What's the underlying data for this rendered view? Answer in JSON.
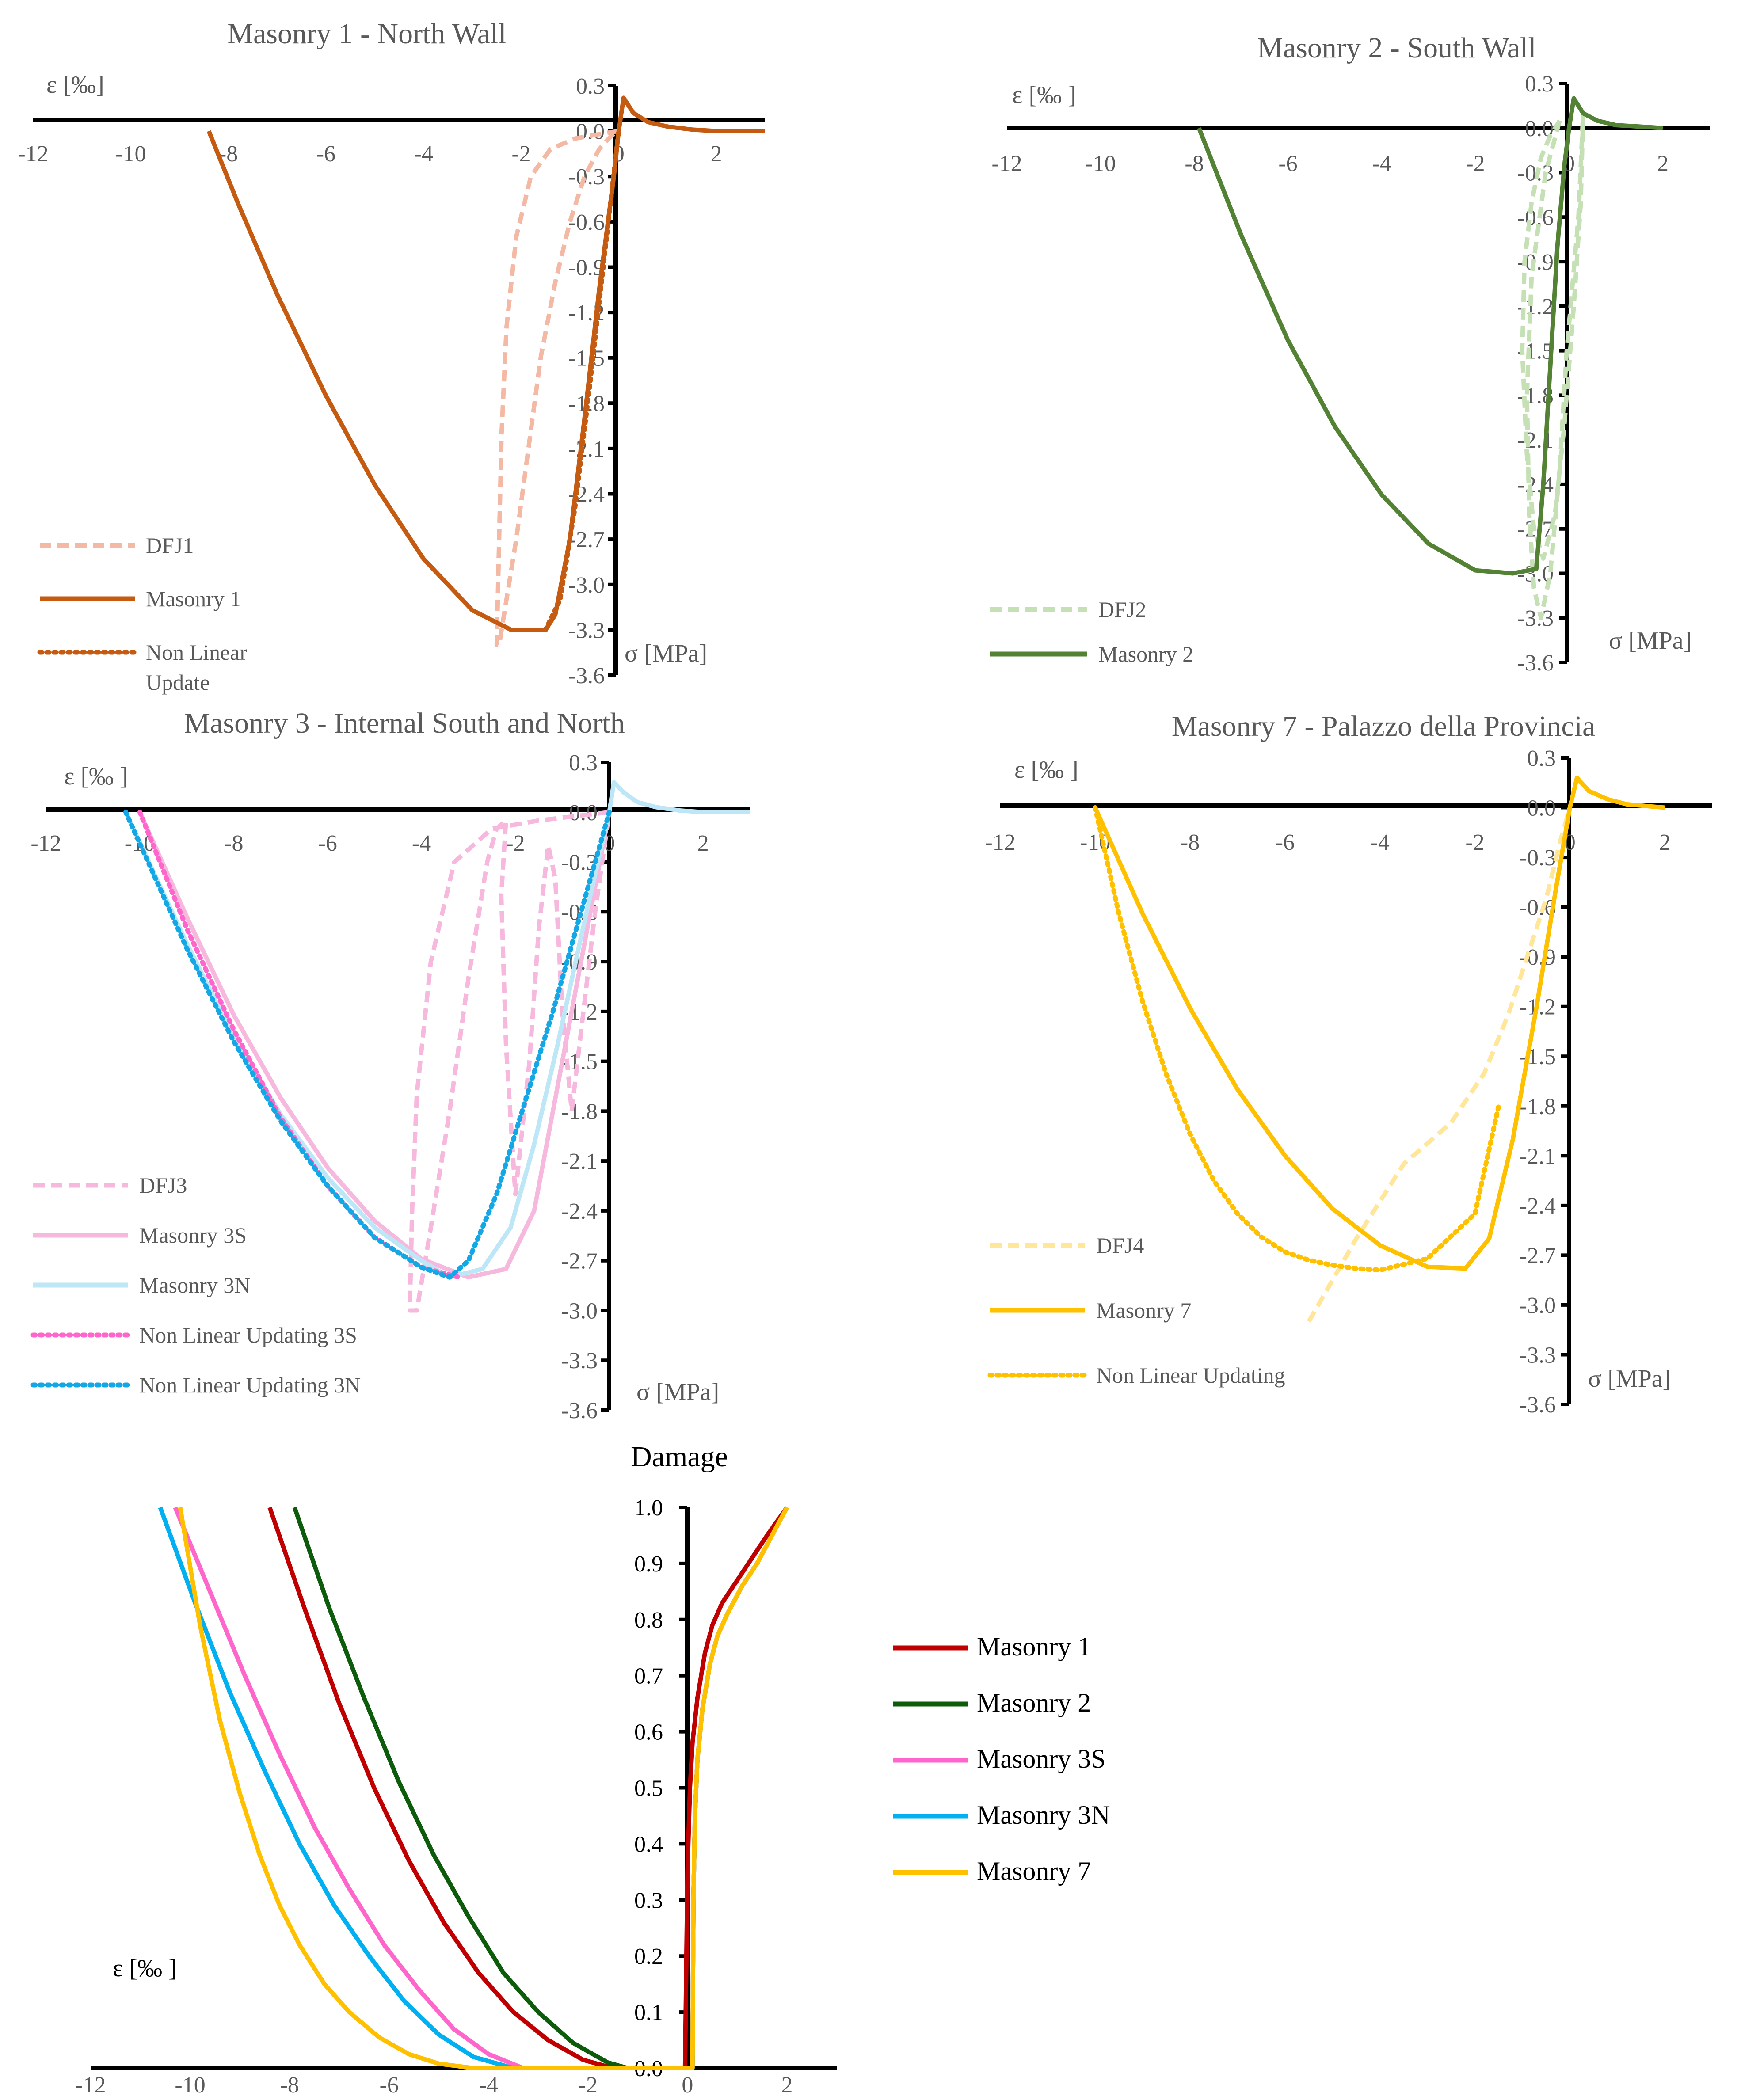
{
  "chart_data": [
    {
      "type": "line",
      "title": "Masonry 1 - North Wall",
      "xlabel": "ε [‰]",
      "ylabel": "σ [MPa]",
      "xlim": [
        -12,
        3
      ],
      "ylim": [
        -3.6,
        0.3
      ],
      "xticks": [
        "-12",
        "-10",
        "-8",
        "-6",
        "-4",
        "-2",
        "0",
        "2"
      ],
      "yticks": [
        "0.3",
        "0.0",
        "-0.3",
        "-0.6",
        "-0.9",
        "-1.2",
        "-1.5",
        "-1.8",
        "-2.1",
        "-2.4",
        "-2.7",
        "-3.0",
        "-3.3",
        "-3.6"
      ],
      "legend": "bottom-left",
      "series": [
        {
          "name": "DFJ1",
          "color": "#f4b9a4",
          "dash": "dashed",
          "x": [
            0,
            -0.4,
            -0.9,
            -1.4,
            -1.8,
            -2.1,
            -2.3,
            -2.4,
            -2.45,
            -2.5,
            -2.45,
            -2.3,
            -2.1,
            -1.85,
            -1.6,
            -1.3,
            -1.0,
            -0.7,
            -0.4,
            -0.15,
            0
          ],
          "y": [
            0,
            -0.02,
            -0.05,
            -0.12,
            -0.3,
            -0.7,
            -1.3,
            -2.0,
            -2.7,
            -3.4,
            -3.4,
            -3.1,
            -2.7,
            -2.1,
            -1.5,
            -1.0,
            -0.6,
            -0.3,
            -0.12,
            -0.03,
            0
          ]
        },
        {
          "name": "Masonry 1",
          "color": "#c55a11",
          "dash": "solid",
          "x": [
            -8.4,
            -7.8,
            -7.0,
            -6.0,
            -5.0,
            -4.0,
            -3.0,
            -2.2,
            -1.5,
            -1.3,
            -1.0,
            -0.7,
            -0.4,
            -0.1,
            0,
            0.1,
            0.3,
            0.6,
            1.0,
            1.5,
            2.0,
            3.0
          ],
          "y": [
            0,
            -0.48,
            -1.08,
            -1.75,
            -2.34,
            -2.83,
            -3.17,
            -3.3,
            -3.3,
            -3.2,
            -2.7,
            -1.9,
            -1.05,
            -0.3,
            0,
            0.22,
            0.12,
            0.06,
            0.03,
            0.01,
            0,
            0
          ]
        },
        {
          "name": "Non Linear Update",
          "color": "#c55a11",
          "dash": "dotted",
          "x": [
            -1.5,
            -1.2,
            -0.9,
            -0.6,
            -0.3,
            0
          ],
          "y": [
            -3.3,
            -3.1,
            -2.5,
            -1.7,
            -0.85,
            0
          ]
        }
      ]
    },
    {
      "type": "line",
      "title": "Masonry 2 - South Wall",
      "xlabel": "ε [‰ ]",
      "ylabel": "σ [MPa]",
      "xlim": [
        -12,
        3
      ],
      "ylim": [
        -3.6,
        0.3
      ],
      "xticks": [
        "-12",
        "-10",
        "-8",
        "-6",
        "-4",
        "-2",
        "0",
        "2"
      ],
      "yticks": [
        "0.3",
        "0.0",
        "-0.3",
        "-0.6",
        "-0.9",
        "-1.2",
        "-1.5",
        "-1.8",
        "-2.1",
        "-2.4",
        "-2.7",
        "-3.0",
        "-3.3",
        "-3.6"
      ],
      "legend": "bottom-left",
      "series": [
        {
          "name": "DFJ2",
          "color": "#c5e0b4",
          "dash": "dashed",
          "x": [
            -0.2,
            -0.5,
            -0.8,
            -0.9,
            -0.85,
            -0.75,
            -0.6,
            -0.4,
            -0.2,
            -0.05,
            0.2,
            0.3,
            0.25,
            0.1,
            -0.1,
            -0.3,
            -0.55,
            -0.75,
            -0.9,
            -1.0,
            -0.95,
            -0.8,
            -0.6,
            -0.4,
            -0.2
          ],
          "y": [
            0.05,
            -0.3,
            -1.0,
            -1.8,
            -2.6,
            -3.1,
            -3.3,
            -3.0,
            -2.3,
            -1.5,
            -0.6,
            0.1,
            -0.5,
            -1.2,
            -2.0,
            -2.6,
            -2.9,
            -2.7,
            -2.2,
            -1.5,
            -0.9,
            -0.5,
            -0.2,
            -0.05,
            0.05
          ]
        },
        {
          "name": "Masonry 2",
          "color": "#548235",
          "dash": "solid",
          "x": [
            -7.9,
            -7.0,
            -6.0,
            -5.0,
            -4.0,
            -3.0,
            -2.0,
            -1.2,
            -0.7,
            -0.55,
            -0.4,
            -0.25,
            -0.1,
            0,
            0.1,
            0.3,
            0.6,
            1.0,
            1.5,
            2.0
          ],
          "y": [
            0,
            -0.72,
            -1.43,
            -2.01,
            -2.47,
            -2.8,
            -2.98,
            -3.0,
            -2.97,
            -2.4,
            -1.6,
            -0.8,
            -0.25,
            0,
            0.2,
            0.1,
            0.05,
            0.02,
            0.01,
            0
          ]
        }
      ]
    },
    {
      "type": "line",
      "title": "Masonry 3 - Internal South and North",
      "xlabel": "ε [‰ ]",
      "ylabel": "σ [MPa]",
      "xlim": [
        -12,
        3
      ],
      "ylim": [
        -3.6,
        0.3
      ],
      "xticks": [
        "-12",
        "-10",
        "-8",
        "-6",
        "-4",
        "-2",
        "0",
        "2"
      ],
      "yticks": [
        "0.3",
        "0.0",
        "-0.3",
        "-0.6",
        "-0.9",
        "-1.2",
        "-1.5",
        "-1.8",
        "-2.1",
        "-2.4",
        "-2.7",
        "-3.0",
        "-3.3",
        "-3.6"
      ],
      "legend": "bottom-left",
      "series": [
        {
          "name": "DFJ3",
          "color": "#f7b8de",
          "dash": "dashed",
          "x": [
            0,
            -0.6,
            -1.5,
            -2.5,
            -3.3,
            -3.8,
            -4.1,
            -4.2,
            -4.25,
            -4.1,
            -3.8,
            -3.4,
            -3.0,
            -2.6,
            -2.4,
            -2.2,
            -2.3,
            -2.2,
            -2.0,
            -1.7,
            -1.5,
            -1.3,
            -1.15,
            -1.0,
            -0.8,
            -0.55,
            -0.3,
            -0.1,
            0
          ],
          "y": [
            0,
            -0.02,
            -0.05,
            -0.1,
            -0.3,
            -0.9,
            -1.7,
            -2.4,
            -3.0,
            -3.0,
            -2.5,
            -1.8,
            -1.0,
            -0.3,
            -0.1,
            -0.05,
            -0.5,
            -1.4,
            -2.3,
            -1.5,
            -0.7,
            -0.2,
            -0.4,
            -1.2,
            -1.8,
            -1.2,
            -0.6,
            -0.2,
            0
          ]
        },
        {
          "name": "Masonry 3S",
          "color": "#f7b8de",
          "dash": "solid",
          "x": [
            -10.0,
            -9.0,
            -8.0,
            -7.0,
            -6.0,
            -5.0,
            -4.0,
            -3.0,
            -2.2,
            -1.6,
            -1.2,
            -0.8,
            -0.4,
            -0.1,
            0
          ],
          "y": [
            0,
            -0.63,
            -1.22,
            -1.72,
            -2.14,
            -2.46,
            -2.69,
            -2.8,
            -2.75,
            -2.4,
            -1.8,
            -1.2,
            -0.6,
            -0.15,
            0
          ]
        },
        {
          "name": "Masonry 3N",
          "color": "#bde6f6",
          "dash": "solid",
          "x": [
            -10.3,
            -9.0,
            -8.0,
            -7.0,
            -6.0,
            -5.0,
            -4.0,
            -3.4,
            -2.7,
            -2.1,
            -1.6,
            -1.1,
            -0.6,
            -0.2,
            0,
            0.1,
            0.3,
            0.6,
            1.0,
            1.5,
            2.0,
            3.0
          ],
          "y": [
            0,
            -0.79,
            -1.35,
            -1.82,
            -2.2,
            -2.5,
            -2.7,
            -2.8,
            -2.75,
            -2.5,
            -2.0,
            -1.4,
            -0.75,
            -0.25,
            0,
            0.18,
            0.12,
            0.06,
            0.03,
            0.01,
            0,
            0
          ]
        },
        {
          "name": "Non Linear Updating 3S",
          "color": "#ff66cc",
          "dash": "dotted",
          "x": [
            -10.0,
            -9.0,
            -8.0,
            -7.0,
            -6.0,
            -5.0,
            -4.0,
            -3.2
          ],
          "y": [
            0,
            -0.7,
            -1.31,
            -1.84,
            -2.25,
            -2.56,
            -2.74,
            -2.8
          ]
        },
        {
          "name": "Non Linear Updating 3N",
          "color": "#14a7e6",
          "dash": "dotted",
          "x": [
            -10.3,
            -9.0,
            -8.0,
            -7.0,
            -6.0,
            -5.0,
            -4.0,
            -3.4,
            -3.0,
            -2.4,
            -1.8,
            -1.2,
            -0.6,
            0
          ],
          "y": [
            0,
            -0.82,
            -1.38,
            -1.86,
            -2.25,
            -2.56,
            -2.74,
            -2.8,
            -2.7,
            -2.3,
            -1.75,
            -1.2,
            -0.6,
            0
          ]
        }
      ]
    },
    {
      "type": "line",
      "title": "Masonry 7 - Palazzo della Provincia",
      "xlabel": "ε [‰ ]",
      "ylabel": "σ [MPa]",
      "xlim": [
        -12,
        3
      ],
      "ylim": [
        -3.6,
        0.3
      ],
      "xticks": [
        "-12",
        "-10",
        "-8",
        "-6",
        "-4",
        "-2",
        "0",
        "2"
      ],
      "yticks": [
        "0.3",
        "0.0",
        "-0.3",
        "-0.6",
        "-0.9",
        "-1.2",
        "-1.5",
        "-1.8",
        "-2.1",
        "-2.4",
        "-2.7",
        "-3.0",
        "-3.3",
        "-3.6"
      ],
      "legend": "bottom-left",
      "series": [
        {
          "name": "DFJ4",
          "color": "#ffe699",
          "dash": "dashed",
          "x": [
            -5.5,
            -4.5,
            -3.5,
            -2.5,
            -1.8,
            -1.3,
            -0.9,
            -0.5,
            -0.2,
            0
          ],
          "y": [
            -3.1,
            -2.6,
            -2.15,
            -1.9,
            -1.6,
            -1.25,
            -0.9,
            -0.55,
            -0.2,
            0
          ]
        },
        {
          "name": "Masonry 7",
          "color": "#ffc000",
          "dash": "solid",
          "x": [
            -10.0,
            -9.0,
            -8.0,
            -7.0,
            -6.0,
            -5.0,
            -4.0,
            -3.0,
            -2.2,
            -1.7,
            -1.2,
            -0.7,
            -0.3,
            0,
            0.15,
            0.4,
            0.8,
            1.2,
            1.6,
            2.0
          ],
          "y": [
            0,
            -0.64,
            -1.21,
            -1.7,
            -2.1,
            -2.42,
            -2.64,
            -2.77,
            -2.78,
            -2.6,
            -2.0,
            -1.2,
            -0.5,
            0,
            0.18,
            0.1,
            0.05,
            0.02,
            0.01,
            0
          ]
        },
        {
          "name": "Non Linear Updating",
          "color": "#ffc000",
          "dash": "dotted",
          "x": [
            -10.0,
            -9.5,
            -9.0,
            -8.5,
            -8.0,
            -7.5,
            -7.0,
            -6.5,
            -6.0,
            -5.5,
            -5.0,
            -4.5,
            -4.0,
            -3.0,
            -2.0,
            -1.5
          ],
          "y": [
            0,
            -0.64,
            -1.17,
            -1.61,
            -1.97,
            -2.25,
            -2.45,
            -2.59,
            -2.68,
            -2.73,
            -2.76,
            -2.78,
            -2.79,
            -2.72,
            -2.45,
            -1.8
          ]
        }
      ]
    },
    {
      "type": "line",
      "title": "Damage",
      "xlabel": "ε [‰ ]",
      "ylabel": "",
      "xlim": [
        -12,
        3
      ],
      "ylim": [
        0,
        1
      ],
      "xticks": [
        "-12",
        "-10",
        "-8",
        "-6",
        "-4",
        "-2",
        "0",
        "2"
      ],
      "yticks": [
        "1.0",
        "0.9",
        "0.8",
        "0.7",
        "0.6",
        "0.5",
        "0.4",
        "0.3",
        "0.2",
        "0.1",
        "0.0"
      ],
      "legend": "right",
      "series": [
        {
          "name": "Masonry 1",
          "color": "#c00000",
          "dash": "solid",
          "x": [
            -8.4,
            -7.7,
            -7.0,
            -6.3,
            -5.6,
            -4.9,
            -4.2,
            -3.5,
            -2.8,
            -2.1,
            -1.5,
            -0.1,
            -0.05,
            0,
            0.05,
            0.1,
            0.2,
            0.35,
            0.5,
            0.7,
            1.0,
            1.3,
            1.6,
            2.0
          ],
          "y": [
            1,
            0.82,
            0.65,
            0.5,
            0.37,
            0.26,
            0.17,
            0.1,
            0.05,
            0.015,
            0,
            0,
            0,
            0.35,
            0.5,
            0.58,
            0.66,
            0.74,
            0.79,
            0.83,
            0.87,
            0.91,
            0.95,
            1
          ]
        },
        {
          "name": "Masonry 2",
          "color": "#0c5c0c",
          "dash": "solid",
          "x": [
            -7.9,
            -7.2,
            -6.5,
            -5.8,
            -5.1,
            -4.4,
            -3.7,
            -3.0,
            -2.3,
            -1.6,
            -1.2,
            0.1,
            0.12,
            0.15,
            0.2,
            0.3,
            0.45,
            0.6,
            0.8,
            1.1,
            1.4,
            1.7,
            2.0
          ],
          "y": [
            1,
            0.82,
            0.66,
            0.51,
            0.38,
            0.27,
            0.17,
            0.1,
            0.045,
            0.01,
            0,
            0,
            0.3,
            0.45,
            0.55,
            0.64,
            0.72,
            0.77,
            0.81,
            0.86,
            0.9,
            0.95,
            1
          ]
        },
        {
          "name": "Masonry 3S",
          "color": "#ff66cc",
          "dash": "solid",
          "x": [
            -10.3,
            -9.6,
            -8.9,
            -8.2,
            -7.5,
            -6.8,
            -6.1,
            -5.4,
            -4.7,
            -4.0,
            -3.3,
            0.1,
            0.12,
            0.15,
            0.2,
            0.3,
            0.45,
            0.6,
            0.8,
            1.1,
            1.4,
            1.7,
            2.0
          ],
          "y": [
            1,
            0.85,
            0.7,
            0.56,
            0.43,
            0.32,
            0.22,
            0.14,
            0.07,
            0.025,
            0,
            0,
            0.3,
            0.45,
            0.55,
            0.64,
            0.72,
            0.77,
            0.81,
            0.86,
            0.9,
            0.95,
            1
          ]
        },
        {
          "name": "Masonry 3N",
          "color": "#00b0f0",
          "dash": "solid",
          "x": [
            -10.6,
            -9.9,
            -9.2,
            -8.5,
            -7.8,
            -7.1,
            -6.4,
            -5.7,
            -5.0,
            -4.3,
            -3.5,
            0.1,
            0.12,
            0.15,
            0.2,
            0.3,
            0.45,
            0.6,
            0.8,
            1.1,
            1.4,
            1.7,
            2.0
          ],
          "y": [
            1,
            0.83,
            0.67,
            0.53,
            0.4,
            0.29,
            0.2,
            0.12,
            0.06,
            0.02,
            0,
            0,
            0.3,
            0.45,
            0.55,
            0.64,
            0.72,
            0.77,
            0.81,
            0.86,
            0.9,
            0.95,
            1
          ]
        },
        {
          "name": "Masonry 7",
          "color": "#ffc000",
          "dash": "solid",
          "x": [
            -10.2,
            -9.8,
            -9.4,
            -9.0,
            -8.6,
            -8.2,
            -7.8,
            -7.3,
            -6.8,
            -6.2,
            -5.6,
            -5.0,
            -4.3,
            0.1,
            0.12,
            0.15,
            0.2,
            0.3,
            0.45,
            0.6,
            0.8,
            1.1,
            1.4,
            1.7,
            2.0
          ],
          "y": [
            1,
            0.79,
            0.62,
            0.49,
            0.38,
            0.29,
            0.22,
            0.15,
            0.1,
            0.055,
            0.025,
            0.008,
            0,
            0,
            0.3,
            0.45,
            0.55,
            0.64,
            0.72,
            0.77,
            0.81,
            0.86,
            0.9,
            0.95,
            1
          ]
        }
      ]
    }
  ]
}
